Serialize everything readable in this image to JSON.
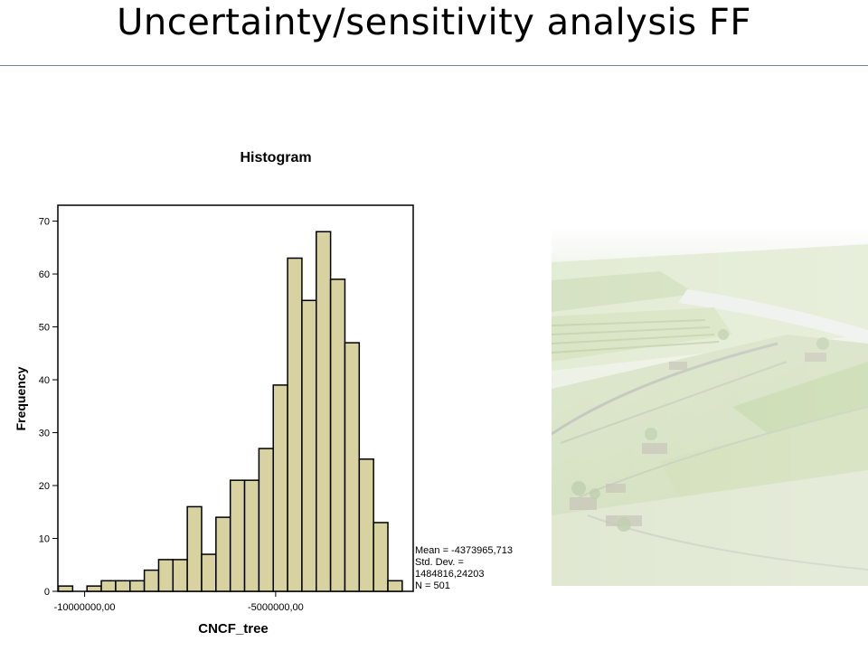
{
  "slide": {
    "title": "Uncertainty/sensitivity analysis FF"
  },
  "chart_data": {
    "type": "bar",
    "title": "Histogram",
    "xlabel": "CNCF_tree",
    "ylabel": "Frequency",
    "ylim": [
      0,
      73
    ],
    "xlim": [
      -10700000,
      -1400000
    ],
    "yticks": [
      0,
      10,
      20,
      30,
      40,
      50,
      60,
      70
    ],
    "xticks": [
      {
        "value": -10000000,
        "label": "-10000000,00"
      },
      {
        "value": -5000000,
        "label": "-5000000,00"
      }
    ],
    "bin_width": 375000,
    "bins": [
      {
        "x": -10500000,
        "count": 1
      },
      {
        "x": -10125000,
        "count": 0
      },
      {
        "x": -9750000,
        "count": 1
      },
      {
        "x": -9375000,
        "count": 2
      },
      {
        "x": -9000000,
        "count": 2
      },
      {
        "x": -8625000,
        "count": 2
      },
      {
        "x": -8250000,
        "count": 4
      },
      {
        "x": -7875000,
        "count": 6
      },
      {
        "x": -7500000,
        "count": 6
      },
      {
        "x": -7125000,
        "count": 16
      },
      {
        "x": -6750000,
        "count": 7
      },
      {
        "x": -6375000,
        "count": 14
      },
      {
        "x": -6000000,
        "count": 21
      },
      {
        "x": -5625000,
        "count": 21
      },
      {
        "x": -5250000,
        "count": 27
      },
      {
        "x": -4875000,
        "count": 39
      },
      {
        "x": -4500000,
        "count": 63
      },
      {
        "x": -4125000,
        "count": 55
      },
      {
        "x": -3750000,
        "count": 68
      },
      {
        "x": -3375000,
        "count": 59
      },
      {
        "x": -3000000,
        "count": 47
      },
      {
        "x": -2625000,
        "count": 25
      },
      {
        "x": -2250000,
        "count": 13
      },
      {
        "x": -1875000,
        "count": 2
      }
    ],
    "bar_color": "#d8d1a0",
    "stats": {
      "mean": "Mean = -4373965,713",
      "std_label": "Std. Dev. =",
      "std_value": "1484816,24203",
      "n": "N = 501"
    },
    "grid": false
  }
}
